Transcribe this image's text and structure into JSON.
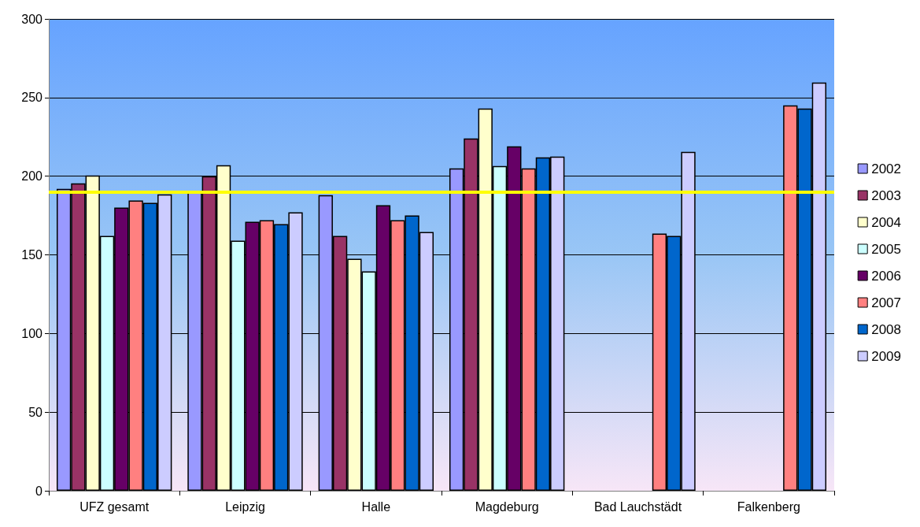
{
  "chart_data": {
    "type": "bar",
    "categories": [
      "UFZ gesamt",
      "Leipzig",
      "Halle",
      "Magdeburg",
      "Bad Lauchstädt",
      "Falkenberg"
    ],
    "series": [
      {
        "name": "2002",
        "color": "#9999ff",
        "values": [
          192,
          190,
          188,
          205,
          null,
          null
        ]
      },
      {
        "name": "2003",
        "color": "#993366",
        "values": [
          195.5,
          200,
          162,
          224,
          null,
          null
        ]
      },
      {
        "name": "2004",
        "color": "#ffffcc",
        "values": [
          200.5,
          207,
          147.5,
          243,
          null,
          null
        ]
      },
      {
        "name": "2005",
        "color": "#ccffff",
        "values": [
          162,
          159,
          139.5,
          206.5,
          null,
          null
        ]
      },
      {
        "name": "2006",
        "color": "#660066",
        "values": [
          180,
          171,
          181.5,
          219,
          null,
          null
        ]
      },
      {
        "name": "2007",
        "color": "#ff8080",
        "values": [
          184.5,
          172,
          172,
          205,
          163.5,
          245
        ]
      },
      {
        "name": "2008",
        "color": "#0066cc",
        "values": [
          183,
          169.5,
          175,
          212,
          162,
          243
        ]
      },
      {
        "name": "2009",
        "color": "#ccccff",
        "values": [
          188.5,
          177,
          164.5,
          212.5,
          215.5,
          259.5
        ]
      }
    ],
    "ylim": [
      0,
      300
    ],
    "yticks": [
      0,
      50,
      100,
      150,
      200,
      250,
      300
    ],
    "grid": "y",
    "legend": "right",
    "ref_lines": [
      {
        "axis": "y",
        "value": 190,
        "color": "#ffff00"
      }
    ]
  }
}
